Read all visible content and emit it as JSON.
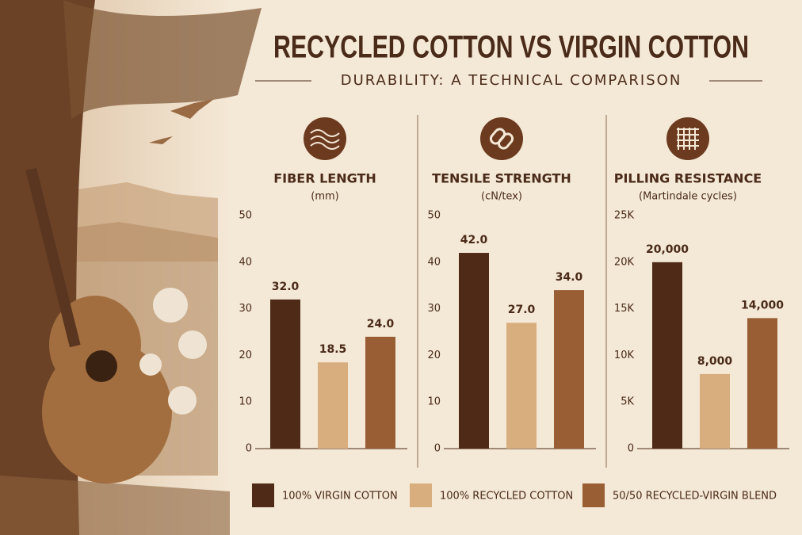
{
  "header": {
    "title": "RECYCLED COTTON VS VIRGIN COTTON",
    "subtitle": "DURABILITY: A TECHNICAL COMPARISON"
  },
  "legend": {
    "items": [
      {
        "name": "100% VIRGIN COTTON",
        "color": "#4f2a17"
      },
      {
        "name": "100% RECYCLED COTTON",
        "color": "#d9ae7f"
      },
      {
        "name": "50/50 RECYCLED-VIRGIN BLEND",
        "color": "#9a5e35"
      }
    ]
  },
  "chart_data": [
    {
      "type": "bar",
      "title": "FIBER LENGTH",
      "subtitle": "(mm)",
      "values": [
        32,
        18.5,
        24
      ],
      "value_labels": [
        "32.0",
        "18.5",
        "24.0"
      ],
      "ylim": [
        0,
        50
      ],
      "yticks": [
        0,
        10,
        20,
        30,
        40,
        50
      ]
    },
    {
      "type": "bar",
      "title": "TENSILE STRENGTH",
      "subtitle": "(cN/tex)",
      "values": [
        42,
        27,
        34
      ],
      "value_labels": [
        "42.0",
        "27.0",
        "34.0"
      ],
      "ylim": [
        0,
        50
      ],
      "yticks": [
        0,
        10,
        20,
        30,
        40,
        50
      ]
    },
    {
      "type": "bar",
      "title": "PILLING RESISTANCE",
      "subtitle": "(Martindale cycles)",
      "values": [
        20000,
        8000,
        14000
      ],
      "value_labels": [
        "20,000",
        "8,000",
        "14,000"
      ],
      "ylim": [
        0,
        25000
      ],
      "yticks": [
        0,
        {
          "value": 5000,
          "label": "5K"
        },
        {
          "value": 10000,
          "label": "10K"
        },
        {
          "value": 15000,
          "label": "15K"
        },
        {
          "value": 20000,
          "label": "20K"
        },
        {
          "value": 25000,
          "label": "25K"
        }
      ]
    }
  ]
}
